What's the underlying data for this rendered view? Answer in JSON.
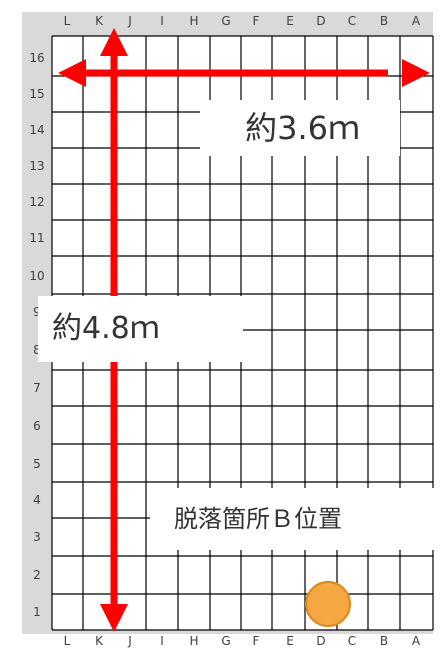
{
  "columns": [
    "L",
    "K",
    "J",
    "I",
    "H",
    "G",
    "F",
    "E",
    "D",
    "C",
    "B",
    "A"
  ],
  "rows": [
    "16",
    "15",
    "14",
    "13",
    "12",
    "11",
    "10",
    "9",
    "8",
    "7",
    "6",
    "5",
    "4",
    "3",
    "2",
    "1"
  ],
  "callouts": {
    "width": "約3.6ｍ",
    "height": "約4.8ｍ",
    "location": "脱落箇所Ｂ位置"
  },
  "colors": {
    "arrow": "#ff0000",
    "marker_fill": "#f4a742",
    "marker_stroke": "#d98a1e",
    "grid_line": "#000000",
    "frame": "#d9d9d9"
  },
  "marker": {
    "column": "D",
    "row": "1"
  }
}
